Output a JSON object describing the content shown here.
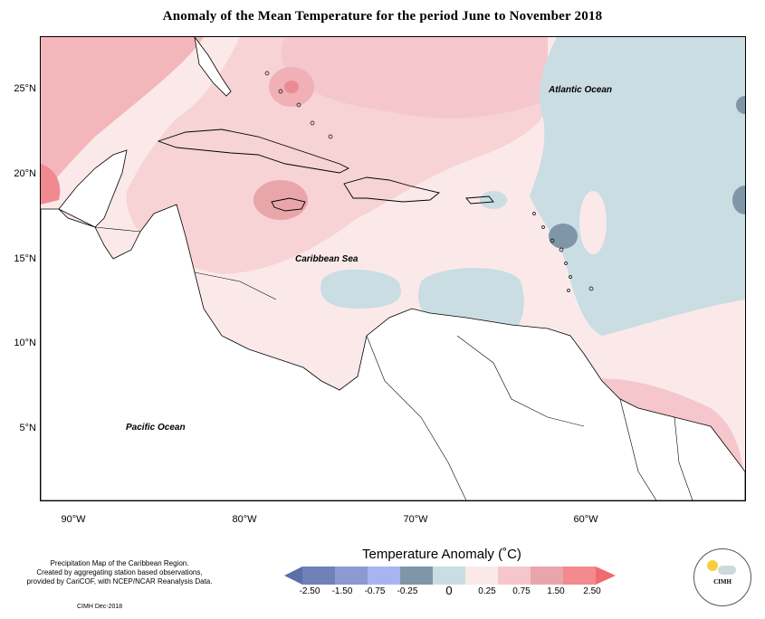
{
  "title": "Anomaly of the Mean Temperature for the period June to November 2018",
  "lat_labels": [
    "25°N",
    "20°N",
    "15°N",
    "10°N",
    "5°N"
  ],
  "lon_labels": [
    "90°W",
    "80°W",
    "70°W",
    "60°W"
  ],
  "ocean_labels": {
    "atlantic": "Atlantic Ocean",
    "caribbean": "Caribbean Sea",
    "pacific": "Pacific Ocean"
  },
  "credit_lines": [
    "Precipitation Map of the Caribbean Region.",
    "Created by aggregating station based observations,",
    "provided by CariCOF, with NCEP/NCAR Reanalysis Data."
  ],
  "credit_date": "CIMH Dec-2018",
  "legend": {
    "title": "Temperature Anomaly (˚C)",
    "ticks": [
      "-2.50",
      "-1.50",
      "-0.75",
      "-0.25",
      "0",
      "0.25",
      "0.75",
      "1.50",
      "2.50"
    ],
    "colors": [
      "#5b6fa8",
      "#8b9ad1",
      "#a8b4f0",
      "#7f96a8",
      "#c9dde3",
      "#fbe9ea",
      "#f5c7cc",
      "#e8a6ab",
      "#f28a8f",
      "#f06a70"
    ]
  },
  "logo": {
    "text": "CIMH"
  }
}
